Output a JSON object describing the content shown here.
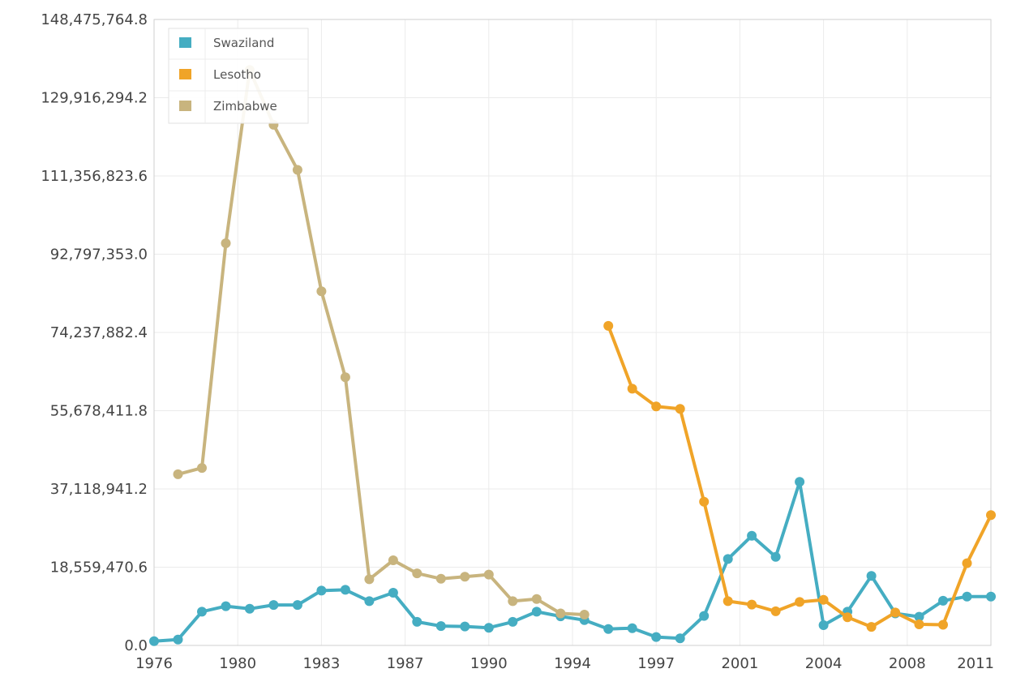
{
  "chart_data": {
    "type": "line",
    "title": "",
    "xlabel": "",
    "ylabel": "",
    "ylim": [
      0,
      148475764.8
    ],
    "xlim": [
      1976,
      2011
    ],
    "x_ticks": [
      "1976",
      "1980",
      "1983",
      "1987",
      "1990",
      "1994",
      "1997",
      "2001",
      "2004",
      "2008",
      "2011"
    ],
    "x_tick_values": [
      1976,
      1979.5,
      1983,
      1986.5,
      1990,
      1993.5,
      1997,
      2000.5,
      2004,
      2007.5,
      2011
    ],
    "y_ticks": [
      "0.0",
      "18,559,470.6",
      "37,118,941.2",
      "55,678,411.8",
      "74,237,882.4",
      "92,797,353.0",
      "111,356,823.6",
      "129,916,294.2",
      "148,475,764.8"
    ],
    "y_tick_values": [
      0,
      18559470.6,
      37118941.2,
      55678411.8,
      74237882.4,
      92797353.0,
      111356823.6,
      129916294.2,
      148475764.8
    ],
    "grid": true,
    "legend_position": "top-left",
    "series": [
      {
        "name": "Swaziland",
        "color": "#45adc2",
        "x": [
          1976,
          1977,
          1978,
          1979,
          1980,
          1981,
          1982,
          1983,
          1984,
          1985,
          1986,
          1987,
          1988,
          1989,
          1990,
          1991,
          1992,
          1993,
          1994,
          1995,
          1996,
          1997,
          1998,
          1999,
          2000,
          2001,
          2002,
          2003,
          2004,
          2005,
          2006,
          2007,
          2008,
          2009,
          2010,
          2011
        ],
        "values": [
          1000000,
          1400000,
          8000000,
          9300000,
          8700000,
          9600000,
          9600000,
          13000000,
          13200000,
          10500000,
          12500000,
          5600000,
          4600000,
          4500000,
          4200000,
          5600000,
          8000000,
          6900000,
          6000000,
          3900000,
          4100000,
          2000000,
          1700000,
          7000000,
          20500000,
          26000000,
          21000000,
          38800000,
          4800000,
          8000000,
          16500000,
          7600000,
          6800000,
          10600000,
          11600000,
          11600000
        ]
      },
      {
        "name": "Lesotho",
        "color": "#f0a428",
        "x": [
          1995,
          1996,
          1997,
          1998,
          1999,
          2000,
          2001,
          2002,
          2003,
          2004,
          2005,
          2006,
          2007,
          2008,
          2009,
          2010,
          2011
        ],
        "values": [
          75800000,
          60900000,
          56700000,
          56100000,
          34100000,
          10500000,
          9700000,
          8100000,
          10300000,
          10800000,
          6700000,
          4400000,
          7800000,
          5000000,
          4900000,
          19500000,
          30900000
        ]
      },
      {
        "name": "Zimbabwe",
        "color": "#c8b47e",
        "x": [
          1977,
          1978,
          1979,
          1980,
          1981,
          1982,
          1983,
          1984,
          1985,
          1986,
          1987,
          1988,
          1989,
          1990,
          1991,
          1992,
          1993,
          1994
        ],
        "values": [
          40600000,
          42100000,
          95400000,
          136500000,
          123500000,
          112800000,
          84000000,
          63600000,
          15700000,
          20200000,
          17100000,
          15800000,
          16300000,
          16800000,
          10500000,
          11000000,
          7600000,
          7300000
        ]
      }
    ]
  }
}
